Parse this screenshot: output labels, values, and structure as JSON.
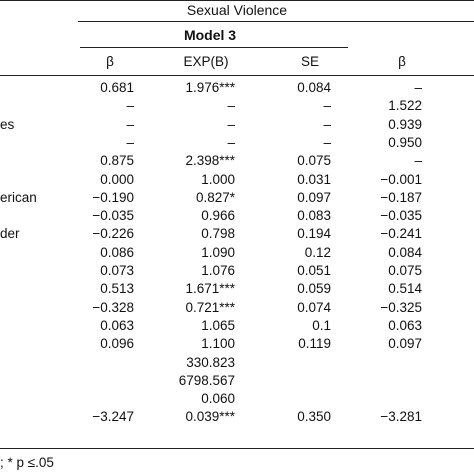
{
  "table": {
    "group_header": "Sexual Violence",
    "model_label": "Model 3",
    "column_headers": [
      "β",
      "EXP(B)",
      "SE",
      "β"
    ],
    "row_labels": [
      "",
      "",
      "es",
      "",
      "",
      "",
      "erican",
      "",
      "der",
      "",
      "",
      "",
      "",
      "",
      "",
      "",
      "",
      "",
      ""
    ],
    "rows": [
      [
        "0.681",
        "1.976***",
        "0.084",
        "–"
      ],
      [
        "–",
        "–",
        "–",
        "1.522"
      ],
      [
        "–",
        "–",
        "–",
        "0.939"
      ],
      [
        "–",
        "–",
        "–",
        "0.950"
      ],
      [
        "0.875",
        "2.398***",
        "0.075",
        "–"
      ],
      [
        "0.000",
        "1.000",
        "0.031",
        "−0.001"
      ],
      [
        "−0.190",
        "0.827*",
        "0.097",
        "−0.187"
      ],
      [
        "−0.035",
        "0.966",
        "0.083",
        "−0.035"
      ],
      [
        "−0.226",
        "0.798",
        "0.194",
        "−0.241"
      ],
      [
        "0.086",
        "1.090",
        "0.12",
        "0.084"
      ],
      [
        "0.073",
        "1.076",
        "0.051",
        "0.075"
      ],
      [
        "0.513",
        "1.671***",
        "0.059",
        "0.514"
      ],
      [
        "−0.328",
        "0.721***",
        "0.074",
        "−0.325"
      ],
      [
        "0.063",
        "1.065",
        "0.1",
        "0.063"
      ],
      [
        "0.096",
        "1.100",
        "0.119",
        "0.097"
      ],
      [
        "",
        "330.823",
        "",
        ""
      ],
      [
        "",
        "6798.567",
        "",
        ""
      ],
      [
        "",
        "0.060",
        "",
        ""
      ],
      [
        "−3.247",
        "0.039***",
        "0.350",
        "−3.281"
      ]
    ],
    "footnote": "; * p ≤.05"
  }
}
